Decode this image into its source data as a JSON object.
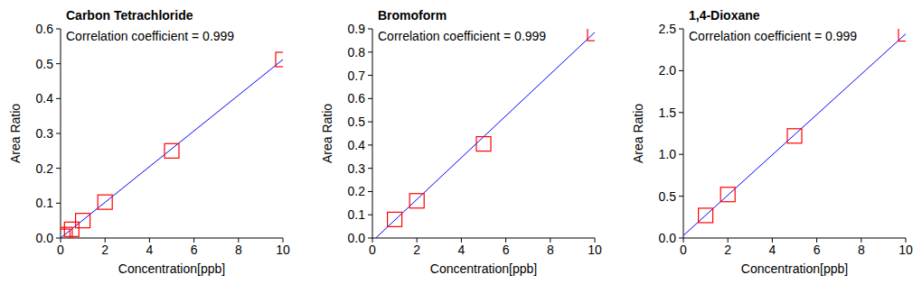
{
  "chart_data": [
    {
      "type": "scatter",
      "title": "Carbon Tetrachloride",
      "annotation": "Correlation coefficient = 0.999",
      "xlabel": "Concentration[ppb]",
      "ylabel": "Area Ratio",
      "xlim": [
        0,
        10
      ],
      "ylim": [
        0,
        0.6
      ],
      "xticks": [
        0,
        2,
        4,
        6,
        8,
        10
      ],
      "yticks": [
        {
          "value": 0,
          "label": "0.0"
        },
        0.1,
        0.2,
        0.3,
        0.4,
        0.5,
        0.6
      ],
      "series": [
        {
          "type": "scatter",
          "color": "#ff0000",
          "marker": "square",
          "x": [
            0.1,
            0.2,
            0.5,
            1,
            2,
            5,
            10
          ],
          "values": [
            0.005,
            0.01,
            0.025,
            0.05,
            0.103,
            0.25,
            0.512
          ]
        },
        {
          "type": "line",
          "color": "#0000ff",
          "x": [
            0,
            10
          ],
          "values": [
            0,
            0.512
          ]
        }
      ]
    },
    {
      "type": "scatter",
      "title": "Bromoform",
      "annotation": "Correlation coefficient = 0.999",
      "xlabel": "Concentration[ppb]",
      "ylabel": "Area Ratio",
      "xlim": [
        0,
        10
      ],
      "ylim": [
        0,
        0.9
      ],
      "xticks": [
        0,
        2,
        4,
        6,
        8,
        10
      ],
      "yticks": [
        {
          "value": 0,
          "label": "0.0"
        },
        0.1,
        0.2,
        0.3,
        0.4,
        0.5,
        0.6,
        0.7,
        0.8,
        0.9
      ],
      "series": [
        {
          "type": "scatter",
          "color": "#ff0000",
          "marker": "square",
          "x": [
            1,
            2,
            5,
            10
          ],
          "values": [
            0.08,
            0.16,
            0.405,
            0.88
          ]
        },
        {
          "type": "line",
          "color": "#0000ff",
          "x": [
            0.15,
            10
          ],
          "values": [
            0,
            0.885
          ]
        }
      ]
    },
    {
      "type": "scatter",
      "title": "1,4-Dioxane",
      "annotation": "Correlation coefficient = 0.999",
      "xlabel": "Concentration[ppb]",
      "ylabel": "Area Ratio",
      "xlim": [
        0,
        10
      ],
      "ylim": [
        0,
        2.5
      ],
      "xticks": [
        0,
        2,
        4,
        6,
        8,
        10
      ],
      "yticks": [
        {
          "value": 0,
          "label": "0.0"
        },
        0.5,
        {
          "value": 1,
          "label": "1.0"
        },
        1.5,
        {
          "value": 2,
          "label": "2.0"
        },
        2.5
      ],
      "series": [
        {
          "type": "scatter",
          "color": "#ff0000",
          "marker": "square",
          "x": [
            1,
            2,
            5,
            10
          ],
          "values": [
            0.27,
            0.52,
            1.22,
            2.44
          ]
        },
        {
          "type": "line",
          "color": "#0000ff",
          "x": [
            0,
            10
          ],
          "values": [
            0.03,
            2.44
          ]
        }
      ]
    }
  ]
}
